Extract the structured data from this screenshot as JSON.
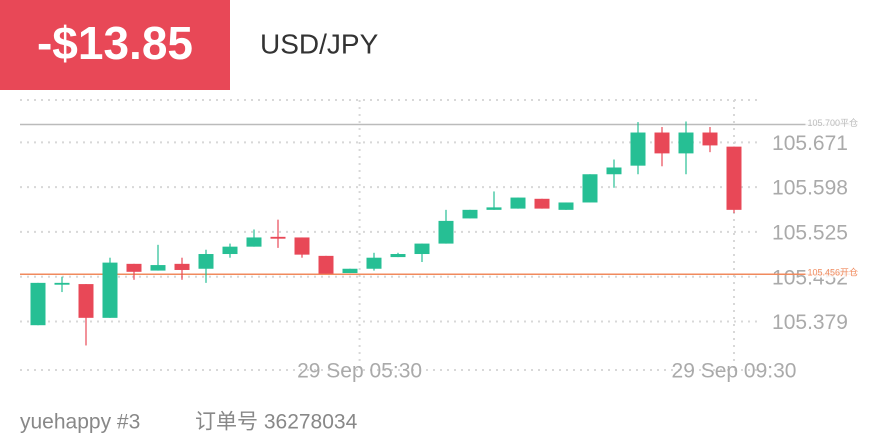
{
  "header": {
    "pnl": "-$13.85",
    "symbol": "USD/JPY"
  },
  "footer": {
    "user": "yuehappy #3",
    "order": "订单号 36278034"
  },
  "chart_data": {
    "type": "candlestick",
    "up_color": "#26bf94",
    "down_color": "#e84857",
    "xlim": [
      -0.75,
      29.5
    ],
    "ylim": [
      105.3,
      105.74
    ],
    "yticks": [
      105.379,
      105.452,
      105.525,
      105.598,
      105.671
    ],
    "xticks": [
      {
        "value": 13.4,
        "label": "29 Sep 05:30"
      },
      {
        "value": 29,
        "label": "29 Sep 09:30"
      }
    ],
    "grid": true,
    "ref_lines": [
      {
        "value": 105.7,
        "label": "105.700平仓",
        "color": "#bbbbbb"
      },
      {
        "value": 105.456,
        "label": "105.456开仓",
        "color": "#f08a5d"
      }
    ],
    "candles": [
      {
        "x": 0,
        "open": 105.373,
        "high": 105.442,
        "low": 105.373,
        "close": 105.442
      },
      {
        "x": 1,
        "open": 105.439,
        "high": 105.452,
        "low": 105.427,
        "close": 105.442
      },
      {
        "x": 2,
        "open": 105.44,
        "high": 105.44,
        "low": 105.34,
        "close": 105.385
      },
      {
        "x": 3,
        "open": 105.385,
        "high": 105.483,
        "low": 105.385,
        "close": 105.475
      },
      {
        "x": 4,
        "open": 105.473,
        "high": 105.473,
        "low": 105.447,
        "close": 105.46
      },
      {
        "x": 5,
        "open": 105.462,
        "high": 105.504,
        "low": 105.462,
        "close": 105.471
      },
      {
        "x": 6,
        "open": 105.473,
        "high": 105.483,
        "low": 105.447,
        "close": 105.463
      },
      {
        "x": 7,
        "open": 105.465,
        "high": 105.496,
        "low": 105.442,
        "close": 105.489
      },
      {
        "x": 8,
        "open": 105.489,
        "high": 105.506,
        "low": 105.483,
        "close": 105.501
      },
      {
        "x": 9,
        "open": 105.501,
        "high": 105.529,
        "low": 105.501,
        "close": 105.516
      },
      {
        "x": 10,
        "open": 105.517,
        "high": 105.545,
        "low": 105.499,
        "close": 105.514
      },
      {
        "x": 11,
        "open": 105.516,
        "high": 105.516,
        "low": 105.483,
        "close": 105.488
      },
      {
        "x": 12,
        "open": 105.486,
        "high": 105.486,
        "low": 105.457,
        "close": 105.457
      },
      {
        "x": 13,
        "open": 105.458,
        "high": 105.465,
        "low": 105.458,
        "close": 105.465
      },
      {
        "x": 14,
        "open": 105.465,
        "high": 105.491,
        "low": 105.462,
        "close": 105.483
      },
      {
        "x": 15,
        "open": 105.484,
        "high": 105.491,
        "low": 105.484,
        "close": 105.489
      },
      {
        "x": 16,
        "open": 105.489,
        "high": 105.506,
        "low": 105.476,
        "close": 105.506
      },
      {
        "x": 17,
        "open": 105.506,
        "high": 105.561,
        "low": 105.506,
        "close": 105.543
      },
      {
        "x": 18,
        "open": 105.547,
        "high": 105.561,
        "low": 105.547,
        "close": 105.561
      },
      {
        "x": 19,
        "open": 105.561,
        "high": 105.591,
        "low": 105.561,
        "close": 105.565
      },
      {
        "x": 20,
        "open": 105.563,
        "high": 105.581,
        "low": 105.563,
        "close": 105.581
      },
      {
        "x": 21,
        "open": 105.579,
        "high": 105.579,
        "low": 105.563,
        "close": 105.563
      },
      {
        "x": 22,
        "open": 105.561,
        "high": 105.573,
        "low": 105.561,
        "close": 105.573
      },
      {
        "x": 23,
        "open": 105.573,
        "high": 105.619,
        "low": 105.573,
        "close": 105.619
      },
      {
        "x": 24,
        "open": 105.619,
        "high": 105.643,
        "low": 105.597,
        "close": 105.63
      },
      {
        "x": 25,
        "open": 105.633,
        "high": 105.704,
        "low": 105.619,
        "close": 105.687
      },
      {
        "x": 26,
        "open": 105.687,
        "high": 105.696,
        "low": 105.632,
        "close": 105.653
      },
      {
        "x": 27,
        "open": 105.653,
        "high": 105.705,
        "low": 105.619,
        "close": 105.687
      },
      {
        "x": 28,
        "open": 105.687,
        "high": 105.696,
        "low": 105.655,
        "close": 105.666
      },
      {
        "x": 29,
        "open": 105.664,
        "high": 105.664,
        "low": 105.556,
        "close": 105.561
      }
    ]
  }
}
